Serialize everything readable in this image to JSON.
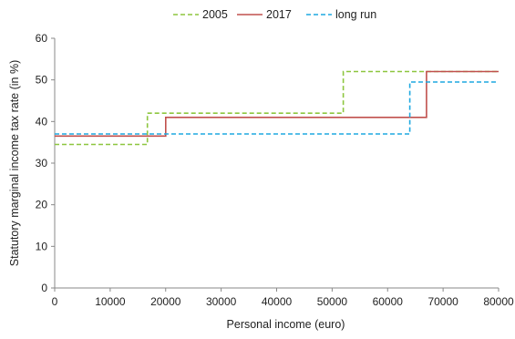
{
  "chart_data": {
    "type": "line",
    "xlabel": "Personal income (euro)",
    "ylabel": "Statutory marginal income tax rate (in %)",
    "xlim": [
      0,
      80000
    ],
    "ylim": [
      0,
      60
    ],
    "xticks": [
      0,
      10000,
      20000,
      30000,
      40000,
      50000,
      60000,
      70000,
      80000
    ],
    "yticks": [
      0,
      10,
      20,
      30,
      40,
      50,
      60
    ],
    "grid": false,
    "legend_position": "top-center",
    "step": true,
    "series": [
      {
        "name": "2005",
        "color": "#8DC63F",
        "dash": "dashed",
        "x": [
          0,
          16700,
          16700,
          52000,
          52000,
          80000
        ],
        "y": [
          34.5,
          34.5,
          42,
          42,
          52,
          52
        ]
      },
      {
        "name": "2017",
        "color": "#C0504D",
        "dash": "solid",
        "x": [
          0,
          20000,
          20000,
          67000,
          67000,
          80000
        ],
        "y": [
          36.5,
          36.5,
          41,
          41,
          52,
          52
        ]
      },
      {
        "name": "long run",
        "color": "#1FA9E1",
        "dash": "dashed",
        "x": [
          0,
          64000,
          64000,
          80000
        ],
        "y": [
          37,
          37,
          49.5,
          49.5
        ]
      }
    ]
  }
}
